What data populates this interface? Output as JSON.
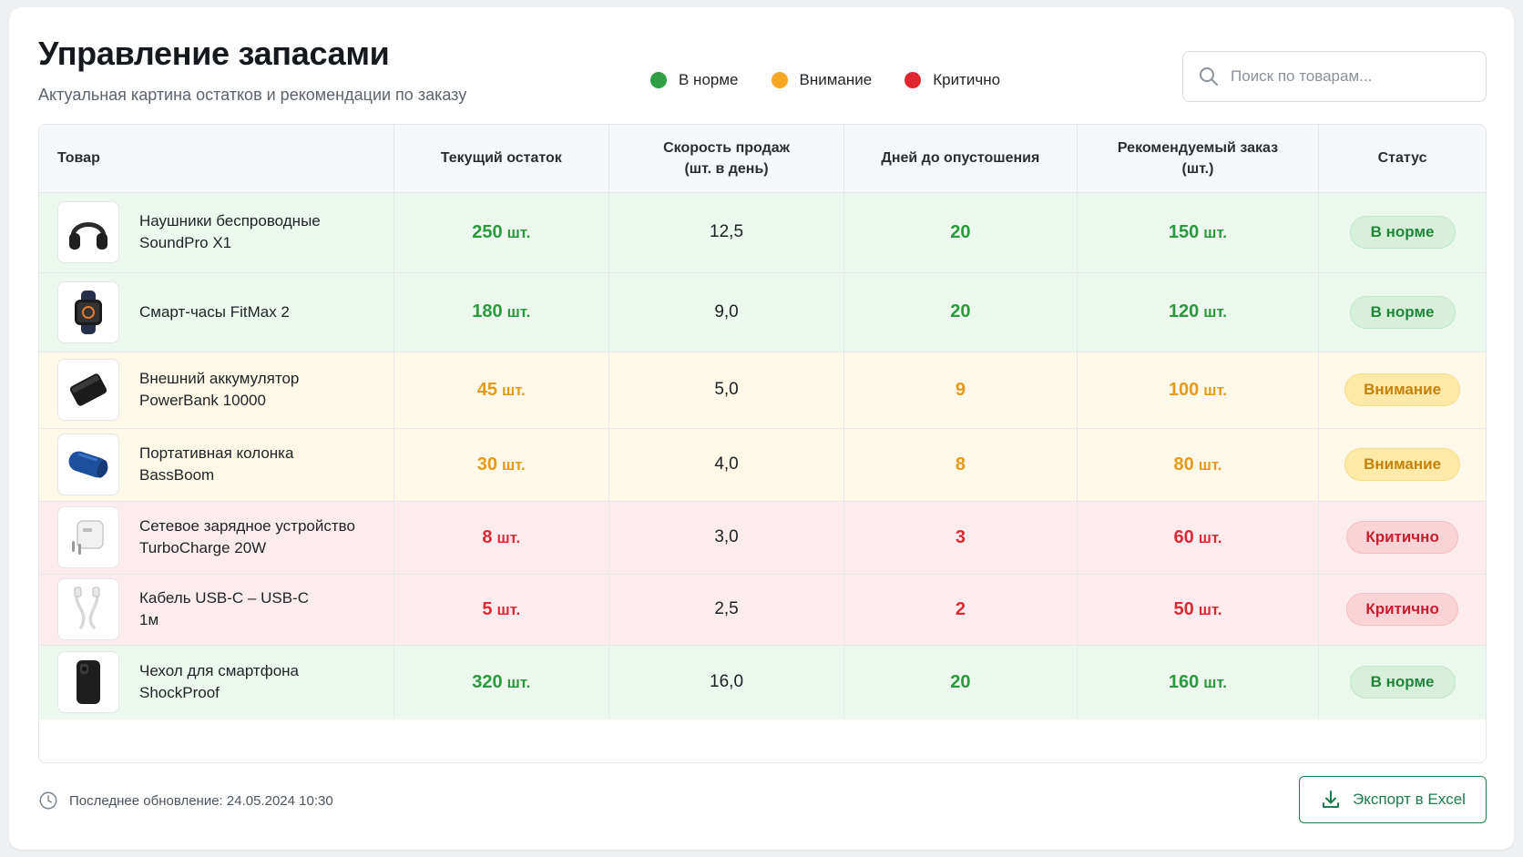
{
  "header": {
    "title": "Управление запасами",
    "subtitle": "Актуальная картина остатков и рекомендации по заказу"
  },
  "legend": [
    {
      "label": "В норме",
      "color": "#2f9e44"
    },
    {
      "label": "Внимание",
      "color": "#f5a623"
    },
    {
      "label": "Критично",
      "color": "#e0252f"
    }
  ],
  "search": {
    "placeholder": "Поиск по товарам...",
    "value": ""
  },
  "table": {
    "columns": {
      "product": "Товар",
      "stock": "Текущий остаток",
      "speed_line1": "Скорость продаж",
      "speed_line2": "(шт. в день)",
      "days": "Дней до опустошения",
      "order_line1": "Рекомендуемый заказ",
      "order_line2": "(шт.)",
      "status": "Статус"
    },
    "unit": "шт.",
    "rows": [
      {
        "name1": "Наушники беспроводные",
        "name2": "SoundPro X1",
        "stock": "250",
        "speed": "12,5",
        "days": "20",
        "order": "150",
        "status": "В норме"
      },
      {
        "name1": "Смарт-часы FitMax 2",
        "name2": "",
        "stock": "180",
        "speed": "9,0",
        "days": "20",
        "order": "120",
        "status": "В норме"
      },
      {
        "name1": "Внешний аккумулятор",
        "name2": "PowerBank 10000",
        "stock": "45",
        "speed": "5,0",
        "days": "9",
        "order": "100",
        "status": "Внимание"
      },
      {
        "name1": "Портативная колонка",
        "name2": "BassBoom",
        "stock": "30",
        "speed": "4,0",
        "days": "8",
        "order": "80",
        "status": "Внимание"
      },
      {
        "name1": "Сетевое зарядное устройство",
        "name2": "TurboCharge 20W",
        "stock": "8",
        "speed": "3,0",
        "days": "3",
        "order": "60",
        "status": "Критично"
      },
      {
        "name1": "Кабель USB-C – USB-C",
        "name2": "1м",
        "stock": "5",
        "speed": "2,5",
        "days": "2",
        "order": "50",
        "status": "Критично"
      },
      {
        "name1": "Чехол для смартфона",
        "name2": "ShockProof",
        "stock": "320",
        "speed": "16,0",
        "days": "20",
        "order": "160",
        "status": "В норме"
      }
    ]
  },
  "footer": {
    "last_update": "Последнее обновление: 24.05.2024 10:30",
    "export_label": "Экспорт в Excel"
  },
  "icons": {
    "search": "search-icon",
    "clock": "clock-icon",
    "export": "download-icon",
    "products": [
      "headphones-icon",
      "smartwatch-icon",
      "powerbank-icon",
      "speaker-icon",
      "charger-icon",
      "usb-cable-icon",
      "phone-case-icon"
    ]
  }
}
